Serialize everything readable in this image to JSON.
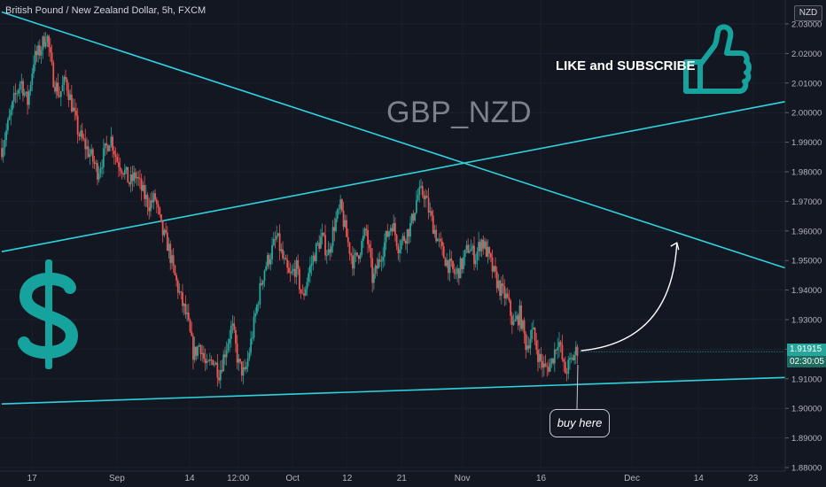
{
  "header": {
    "title": "British Pound / New Zealand Dollar, 5h, FXCM"
  },
  "watermark_text": "GBP_NZD",
  "promo": {
    "like_text": "LIKE and SUBSCRIBE",
    "thumb_icon": "thumbs-up-icon",
    "dollar_icon": "dollar-sign-icon"
  },
  "annotation": {
    "buy_label": "buy here"
  },
  "axis": {
    "currency": "NZD",
    "last_price": "1.91915",
    "countdown": "02:30:05"
  },
  "colors": {
    "background": "#131722",
    "up_candle": "#26a69a",
    "down_candle": "#ef5350",
    "trendline": "#2ed3e0",
    "accent": "#16a39e",
    "price_tag": "#26a69a"
  },
  "chart_data": {
    "type": "candlestick",
    "symbol": "GBP_NZD",
    "ylim": [
      1.88,
      2.032
    ],
    "y_ticks": [
      "2.03000",
      "2.02000",
      "2.01000",
      "2.00000",
      "1.99000",
      "1.98000",
      "1.97000",
      "1.96000",
      "1.95000",
      "1.94000",
      "1.93000",
      "1.92000",
      "1.91000",
      "1.90000",
      "1.89000",
      "1.88000"
    ],
    "x_ticks": [
      {
        "label": "17",
        "i": 5
      },
      {
        "label": "Sep",
        "i": 19
      },
      {
        "label": "14",
        "i": 31
      },
      {
        "label": "12:00",
        "i": 39
      },
      {
        "label": "Oct",
        "i": 48
      },
      {
        "label": "12",
        "i": 57
      },
      {
        "label": "21",
        "i": 66
      },
      {
        "label": "Nov",
        "i": 76
      },
      {
        "label": "16",
        "i": 89
      },
      {
        "label": "Dec",
        "i": 104
      },
      {
        "label": "14",
        "i": 115
      },
      {
        "label": "23",
        "i": 124
      }
    ],
    "x_count": 130,
    "close_path": [
      1.988,
      1.996,
      2.005,
      2.011,
      2.003,
      2.018,
      2.021,
      2.027,
      2.012,
      2.006,
      2.011,
      2.002,
      1.993,
      1.989,
      1.985,
      1.98,
      1.986,
      1.992,
      1.984,
      1.981,
      1.976,
      1.979,
      1.973,
      1.969,
      1.971,
      1.96,
      1.955,
      1.945,
      1.937,
      1.93,
      1.918,
      1.922,
      1.913,
      1.917,
      1.912,
      1.92,
      1.928,
      1.915,
      1.911,
      1.923,
      1.936,
      1.947,
      1.952,
      1.958,
      1.95,
      1.944,
      1.948,
      1.937,
      1.946,
      1.953,
      1.958,
      1.952,
      1.962,
      1.968,
      1.957,
      1.949,
      1.954,
      1.96,
      1.943,
      1.95,
      1.957,
      1.963,
      1.955,
      1.958,
      1.962,
      1.972,
      1.973,
      1.965,
      1.958,
      1.952,
      1.948,
      1.945,
      1.949,
      1.955,
      1.951,
      1.957,
      1.952,
      1.945,
      1.94,
      1.937,
      1.928,
      1.932,
      1.921,
      1.926,
      1.917,
      1.913,
      1.916,
      1.924,
      1.912,
      1.916,
      1.92
    ],
    "trendlines": [
      {
        "name": "upper-descending",
        "x1": 0,
        "y1": 2.034,
        "x2": 130,
        "y2": 1.947
      },
      {
        "name": "mid-ascending",
        "x1": 0,
        "y1": 1.953,
        "x2": 130,
        "y2": 2.004
      },
      {
        "name": "lower-support",
        "x1": 0,
        "y1": 1.9015,
        "x2": 130,
        "y2": 1.9105
      }
    ],
    "projection": {
      "from": [
        95,
        1.9195
      ],
      "to": [
        112,
        1.956
      ]
    }
  }
}
